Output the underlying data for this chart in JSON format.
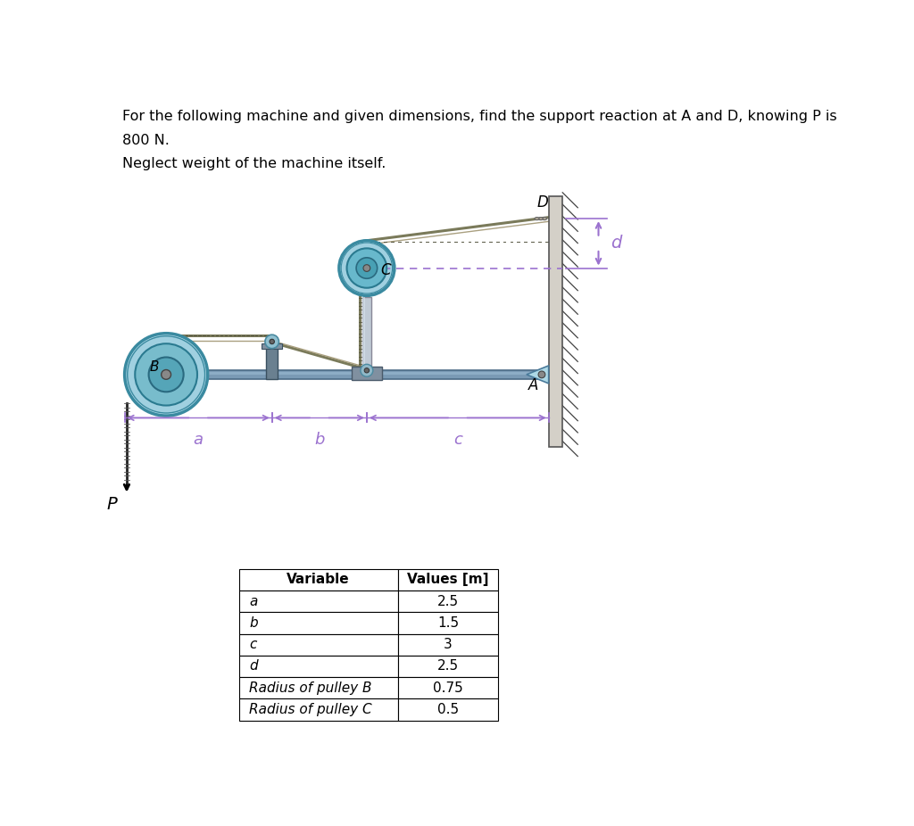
{
  "title_line1": "For the following machine and given dimensions, find the support reaction at A and D, knowing P is",
  "title_line2": "800 N.",
  "subtitle": "Neglect weight of the machine itself.",
  "table_headers": [
    "Variable",
    "Values [m]"
  ],
  "table_rows": [
    [
      "a",
      "2.5"
    ],
    [
      "b",
      "1.5"
    ],
    [
      "c",
      "3"
    ],
    [
      "d",
      "2.5"
    ],
    [
      "Radius of pulley B",
      "0.75"
    ],
    [
      "Radius of pulley C",
      "0.5"
    ]
  ],
  "label_a": "a",
  "label_b": "b",
  "label_c": "c",
  "label_d": "d",
  "label_A": "A",
  "label_B": "B",
  "label_C": "C",
  "label_D": "D",
  "label_P": "P",
  "dim_color": "#9B72CF",
  "bg_color": "#FFFFFF",
  "pulley_outer": "#A8D8E8",
  "pulley_mid": "#60B8CC",
  "pulley_dark": "#3A8AA0",
  "bar_color": "#7A9AB5",
  "bar_edge": "#4A6A85",
  "wall_color": "#D0CFC8",
  "chain_color": "#888870",
  "bracket_color": "#6A8098",
  "col_color": "#C0C8D0",
  "pin_color": "#A0B8C8"
}
